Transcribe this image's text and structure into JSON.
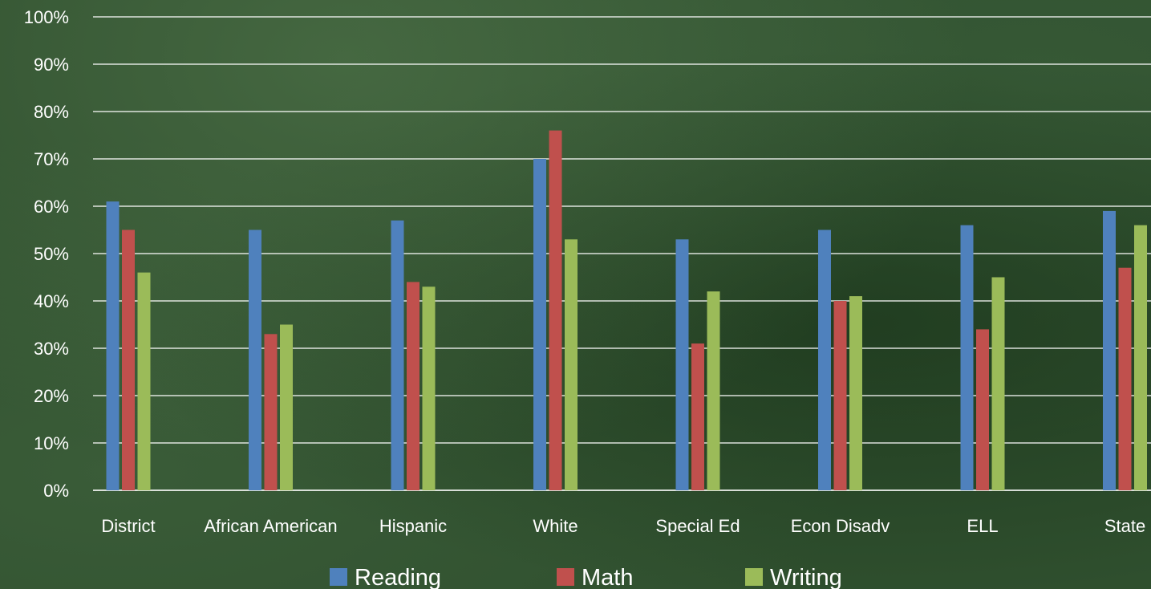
{
  "chart_data": {
    "type": "bar",
    "categories": [
      "District",
      "African American",
      "Hispanic",
      "White",
      "Special Ed",
      "Econ Disadv",
      "ELL",
      "State"
    ],
    "series": [
      {
        "name": "Reading",
        "color": "#4f81bd",
        "values": [
          61,
          55,
          57,
          70,
          53,
          55,
          56,
          59
        ]
      },
      {
        "name": "Math",
        "color": "#c0504d",
        "values": [
          55,
          33,
          44,
          76,
          31,
          40,
          34,
          47
        ]
      },
      {
        "name": "Writing",
        "color": "#9bbb59",
        "values": [
          46,
          35,
          43,
          53,
          42,
          41,
          45,
          56
        ]
      }
    ],
    "ylim": [
      0,
      100
    ],
    "yticks": [
      "0%",
      "10%",
      "20%",
      "30%",
      "40%",
      "50%",
      "60%",
      "70%",
      "80%",
      "90%",
      "100%"
    ],
    "grid": true,
    "legend": "bottom-center"
  }
}
